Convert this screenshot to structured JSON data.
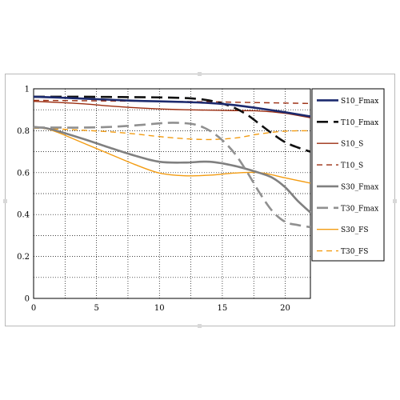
{
  "chart_data": {
    "type": "line",
    "title": "",
    "xlabel": "",
    "ylabel": "",
    "xlim": [
      0,
      22
    ],
    "ylim": [
      0,
      1
    ],
    "x_ticks": [
      "0",
      "5",
      "10",
      "15",
      "20"
    ],
    "y_ticks": [
      "0",
      "0.2",
      "0.4",
      "0.6",
      "0.8",
      "1"
    ],
    "grid": true,
    "legend_position": "right",
    "series": [
      {
        "name": "S10_Fmax",
        "color": "#1c2a6e",
        "dash": "solid",
        "width": 2.6,
        "x": [
          0,
          2,
          4,
          6,
          8,
          10,
          12,
          14,
          16,
          18,
          20,
          22
        ],
        "y": [
          0.962,
          0.958,
          0.953,
          0.948,
          0.943,
          0.94,
          0.937,
          0.932,
          0.922,
          0.906,
          0.888,
          0.868
        ]
      },
      {
        "name": "T10_Fmax",
        "color": "#111111",
        "dash": "long-dash",
        "width": 2.6,
        "x": [
          0,
          2,
          4,
          6,
          8,
          10,
          12,
          13,
          14,
          15,
          16,
          17,
          18,
          19,
          20,
          21,
          22
        ],
        "y": [
          0.962,
          0.962,
          0.962,
          0.961,
          0.96,
          0.959,
          0.956,
          0.952,
          0.944,
          0.93,
          0.908,
          0.875,
          0.83,
          0.785,
          0.745,
          0.72,
          0.7
        ]
      },
      {
        "name": "S10_S",
        "color": "#9b2d10",
        "dash": "solid",
        "width": 1.4,
        "x": [
          0,
          2,
          4,
          6,
          8,
          10,
          12,
          14,
          16,
          18,
          20,
          22
        ],
        "y": [
          0.94,
          0.935,
          0.928,
          0.918,
          0.91,
          0.904,
          0.9,
          0.898,
          0.896,
          0.894,
          0.883,
          0.862
        ]
      },
      {
        "name": "T10_S",
        "color": "#9b2d10",
        "dash": "dash",
        "width": 1.4,
        "x": [
          0,
          2,
          4,
          6,
          8,
          10,
          12,
          14,
          16,
          18,
          20,
          22
        ],
        "y": [
          0.945,
          0.944,
          0.943,
          0.942,
          0.941,
          0.94,
          0.939,
          0.938,
          0.936,
          0.934,
          0.932,
          0.93
        ]
      },
      {
        "name": "S30_Fmax",
        "color": "#808080",
        "dash": "solid",
        "width": 2.6,
        "x": [
          0,
          1,
          2,
          4,
          6,
          8,
          10,
          12,
          14,
          16,
          18,
          19,
          20,
          21,
          22
        ],
        "y": [
          0.818,
          0.812,
          0.797,
          0.76,
          0.72,
          0.682,
          0.652,
          0.648,
          0.652,
          0.632,
          0.598,
          0.575,
          0.53,
          0.465,
          0.41
        ]
      },
      {
        "name": "T30_Fmax",
        "color": "#909090",
        "dash": "long-dash",
        "width": 2.6,
        "x": [
          0,
          2,
          4,
          6,
          8,
          10,
          11,
          12,
          13,
          14,
          15,
          16,
          17,
          18,
          19,
          20,
          21,
          22
        ],
        "y": [
          0.815,
          0.815,
          0.815,
          0.818,
          0.825,
          0.835,
          0.838,
          0.836,
          0.827,
          0.8,
          0.755,
          0.69,
          0.6,
          0.5,
          0.415,
          0.365,
          0.35,
          0.34
        ]
      },
      {
        "name": "S30_FS",
        "color": "#f39c12",
        "dash": "solid",
        "width": 1.4,
        "x": [
          0,
          1,
          2,
          4,
          6,
          8,
          10,
          12,
          14,
          16,
          18,
          20,
          22
        ],
        "y": [
          0.818,
          0.81,
          0.79,
          0.74,
          0.69,
          0.64,
          0.598,
          0.585,
          0.588,
          0.598,
          0.6,
          0.575,
          0.55
        ]
      },
      {
        "name": "T30_FS",
        "color": "#f39c12",
        "dash": "dash",
        "width": 1.4,
        "x": [
          0,
          2,
          4,
          6,
          8,
          10,
          12,
          14,
          16,
          18,
          20,
          22
        ],
        "y": [
          0.812,
          0.808,
          0.802,
          0.795,
          0.785,
          0.772,
          0.762,
          0.758,
          0.765,
          0.785,
          0.798,
          0.8
        ]
      }
    ]
  }
}
